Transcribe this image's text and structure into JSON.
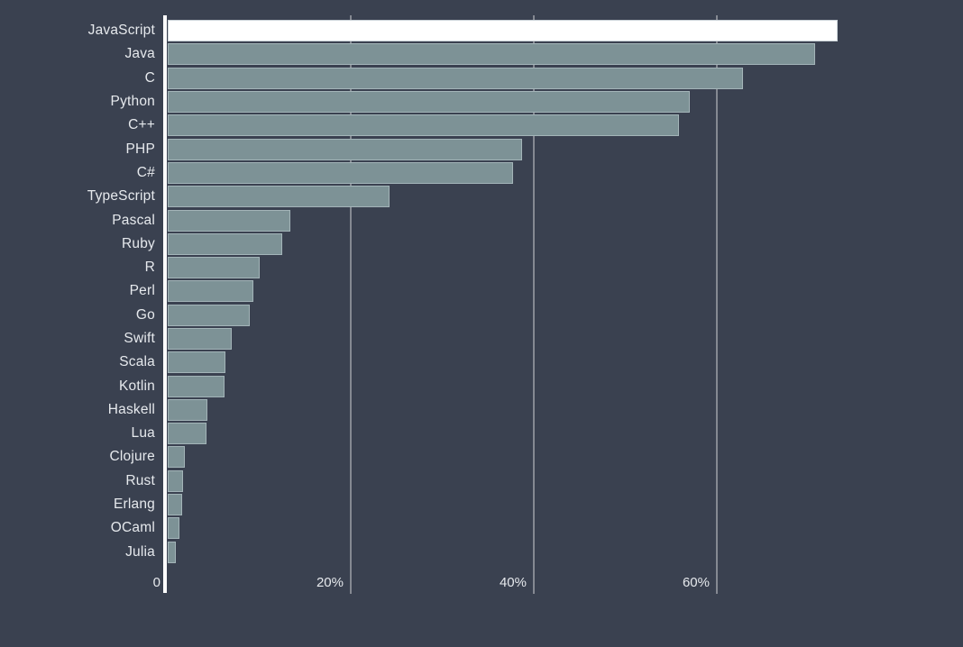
{
  "chart_data": {
    "type": "bar",
    "orientation": "horizontal",
    "title": "",
    "xlabel": "",
    "ylabel": "",
    "categories": [
      "JavaScript",
      "Java",
      "C",
      "Python",
      "C++",
      "PHP",
      "C#",
      "TypeScript",
      "Pascal",
      "Ruby",
      "R",
      "Perl",
      "Go",
      "Swift",
      "Scala",
      "Kotlin",
      "Haskell",
      "Lua",
      "Clojure",
      "Rust",
      "Erlang",
      "OCaml",
      "Julia"
    ],
    "values": [
      73.2,
      70.7,
      62.9,
      57.0,
      55.9,
      38.7,
      37.7,
      24.2,
      13.4,
      12.5,
      10.0,
      9.4,
      9.0,
      7.0,
      6.3,
      6.2,
      4.3,
      4.2,
      1.9,
      1.7,
      1.6,
      1.3,
      0.9
    ],
    "unit": "%",
    "highlight_index": 0,
    "x_ticks": [
      {
        "value": 0,
        "label": "0"
      },
      {
        "value": 20,
        "label": "20%"
      },
      {
        "value": 40,
        "label": "40%"
      },
      {
        "value": 60,
        "label": "60%"
      }
    ],
    "xlim": [
      0,
      87
    ],
    "grid": "vertical-lines-behind-bars",
    "legend": "none",
    "colors": {
      "background": "#3A4150",
      "bar": "#7D9296",
      "highlight_bar": "#FFFFFF",
      "axis_line": "#FFFFFF",
      "gridline": "#9CA6B0",
      "text": "#E6E9ED"
    }
  }
}
